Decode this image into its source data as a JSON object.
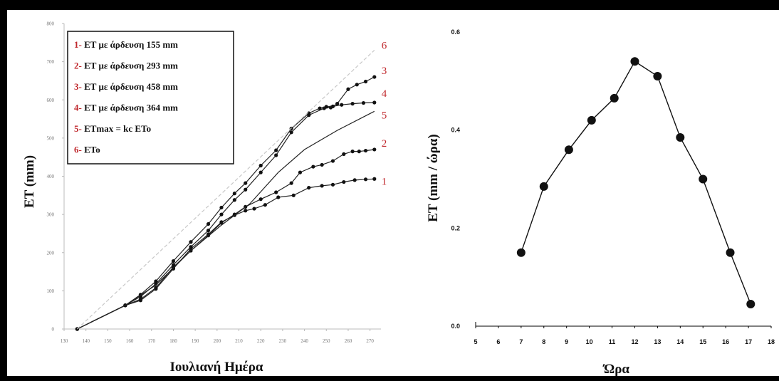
{
  "chart_data": [
    {
      "type": "line",
      "title": "",
      "xlabel": "Ιουλιανή Ημέρα",
      "ylabel": "ET (mm)",
      "xlim": [
        130,
        275
      ],
      "ylim": [
        0,
        800
      ],
      "x_ticks": [
        130,
        140,
        150,
        160,
        170,
        180,
        190,
        200,
        210,
        220,
        230,
        240,
        250,
        260,
        270
      ],
      "y_ticks": [
        0,
        100,
        200,
        300,
        400,
        500,
        600,
        700,
        800
      ],
      "grid": false,
      "legend_position": "top-left",
      "legend": [
        {
          "num": "1-",
          "text": "ET με άρδευση 155 mm"
        },
        {
          "num": "2-",
          "text": "ET με άρδευση 293 mm"
        },
        {
          "num": "3-",
          "text": "ET με άρδευση 458 mm"
        },
        {
          "num": "4-",
          "text": "ET με άρδευση 364 mm"
        },
        {
          "num": "5-",
          "text": "ETmax = kc ETo"
        },
        {
          "num": "6-",
          "text": "ETo"
        }
      ],
      "series": [
        {
          "label": "1",
          "markers": true,
          "x": [
            136,
            158,
            165,
            172,
            180,
            188,
            196,
            202,
            208,
            213,
            217,
            222,
            228,
            235,
            242,
            248,
            253,
            258,
            263,
            268,
            272
          ],
          "y": [
            0,
            62,
            75,
            105,
            158,
            210,
            248,
            280,
            298,
            310,
            315,
            325,
            345,
            350,
            370,
            375,
            378,
            385,
            390,
            392,
            393
          ]
        },
        {
          "label": "2",
          "markers": true,
          "x": [
            136,
            158,
            165,
            172,
            180,
            188,
            196,
            202,
            208,
            213,
            220,
            227,
            234,
            238,
            244,
            248,
            253,
            258,
            262,
            265,
            268,
            272
          ],
          "y": [
            0,
            62,
            78,
            108,
            162,
            205,
            245,
            278,
            300,
            320,
            340,
            358,
            382,
            410,
            425,
            430,
            440,
            458,
            465,
            465,
            467,
            470
          ]
        },
        {
          "label": "3",
          "markers": true,
          "x": [
            136,
            158,
            165,
            172,
            180,
            188,
            196,
            202,
            208,
            213,
            220,
            227,
            234,
            242,
            249,
            252,
            255,
            260,
            264,
            268,
            272
          ],
          "y": [
            0,
            62,
            85,
            118,
            168,
            215,
            258,
            300,
            338,
            365,
            410,
            455,
            515,
            560,
            578,
            580,
            590,
            628,
            640,
            648,
            660
          ]
        },
        {
          "label": "4",
          "markers": true,
          "x": [
            136,
            158,
            165,
            172,
            180,
            188,
            196,
            202,
            208,
            213,
            220,
            227,
            234,
            242,
            247,
            250,
            253,
            257,
            262,
            267,
            272
          ],
          "y": [
            0,
            62,
            90,
            125,
            178,
            228,
            275,
            318,
            355,
            382,
            428,
            468,
            525,
            565,
            578,
            582,
            583,
            587,
            590,
            592,
            593
          ]
        },
        {
          "label": "5",
          "markers": false,
          "x": [
            136,
            158,
            172,
            188,
            202,
            215,
            228,
            240,
            255,
            272
          ],
          "y": [
            0,
            62,
            115,
            205,
            272,
            328,
            410,
            470,
            520,
            570
          ]
        },
        {
          "label": "6",
          "markers": false,
          "dashed": true,
          "x": [
            136,
            272
          ],
          "y": [
            0,
            730
          ]
        }
      ]
    },
    {
      "type": "line",
      "title": "",
      "xlabel": "Ώρα",
      "ylabel": "ET (mm / ώρα)",
      "xlim": [
        5,
        18
      ],
      "ylim": [
        0,
        0.6
      ],
      "x_ticks": [
        5,
        6,
        7,
        8,
        9,
        10,
        11,
        12,
        13,
        14,
        15,
        16,
        17,
        18
      ],
      "y_ticks": [
        "0.0",
        "0.2",
        "0.4",
        "0.6"
      ],
      "grid": false,
      "series": [
        {
          "label": "",
          "markers": true,
          "x": [
            7,
            8,
            9.1,
            10.1,
            11.1,
            12,
            13,
            14,
            15,
            16.2,
            17.1
          ],
          "y": [
            0.15,
            0.285,
            0.36,
            0.42,
            0.465,
            0.54,
            0.51,
            0.385,
            0.3,
            0.15,
            0.045
          ]
        }
      ]
    }
  ]
}
